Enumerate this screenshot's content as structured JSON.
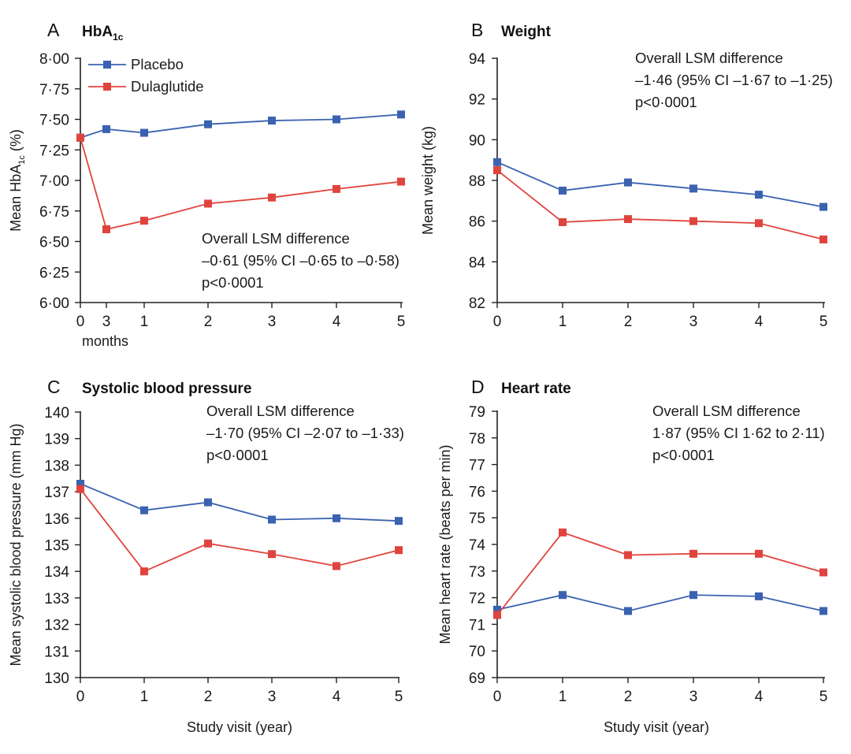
{
  "legend": [
    {
      "name": "Placebo",
      "color": "#3a62b0"
    },
    {
      "name": "Dulaglutide",
      "color": "#e0443e"
    }
  ],
  "xlabel_bottom": "Study visit (year)",
  "chart_data": [
    {
      "type": "line",
      "panel": "A",
      "title": "HbA",
      "title_sub": "1c",
      "ylabel": "Mean HbA",
      "ylabel_sub": "1c",
      "ylabel_suffix": " (%)",
      "x_tick_labels": [
        "0",
        "3",
        "1",
        "2",
        "3",
        "4",
        "5"
      ],
      "x_note": "months",
      "ylim": [
        6.0,
        8.0
      ],
      "y_ticks": [
        "6·00",
        "6·25",
        "6·50",
        "6·75",
        "7·00",
        "7·25",
        "7·50",
        "7·75",
        "8·00"
      ],
      "series": [
        {
          "name": "Placebo",
          "values": [
            7.35,
            7.42,
            7.39,
            7.46,
            7.49,
            7.5,
            7.54
          ]
        },
        {
          "name": "Dulaglutide",
          "values": [
            7.35,
            6.6,
            6.67,
            6.81,
            6.86,
            6.93,
            6.99
          ]
        }
      ],
      "annotation": [
        "Overall LSM difference",
        "–0·61 (95% CI –0·65 to –0·58)",
        "p<0·0001"
      ]
    },
    {
      "type": "line",
      "panel": "B",
      "title": "Weight",
      "ylabel": "Mean weight (kg)",
      "x_tick_labels": [
        "0",
        "1",
        "2",
        "3",
        "4",
        "5"
      ],
      "ylim": [
        82,
        94
      ],
      "y_ticks": [
        "82",
        "84",
        "86",
        "88",
        "90",
        "92",
        "94"
      ],
      "series": [
        {
          "name": "Placebo",
          "values": [
            88.9,
            87.5,
            87.9,
            87.6,
            87.3,
            86.7
          ]
        },
        {
          "name": "Dulaglutide",
          "values": [
            88.5,
            85.95,
            86.1,
            86.0,
            85.9,
            85.1
          ]
        }
      ],
      "annotation": [
        "Overall LSM difference",
        "–1·46 (95% CI –1·67 to –1·25)",
        "p<0·0001"
      ]
    },
    {
      "type": "line",
      "panel": "C",
      "title": "Systolic blood pressure",
      "ylabel": "Mean systolic blood pressure (mm Hg)",
      "xlabel": "Study visit (year)",
      "x_tick_labels": [
        "0",
        "1",
        "2",
        "3",
        "4",
        "5"
      ],
      "ylim": [
        130,
        140
      ],
      "y_ticks": [
        "130",
        "131",
        "132",
        "133",
        "134",
        "135",
        "136",
        "137",
        "138",
        "139",
        "140"
      ],
      "series": [
        {
          "name": "Placebo",
          "values": [
            137.3,
            136.3,
            136.6,
            135.95,
            136.0,
            135.9
          ]
        },
        {
          "name": "Dulaglutide",
          "values": [
            137.1,
            134.0,
            135.05,
            134.65,
            134.2,
            134.8
          ]
        }
      ],
      "annotation": [
        "Overall LSM difference",
        "–1·70 (95% CI –2·07 to –1·33)",
        "p<0·0001"
      ]
    },
    {
      "type": "line",
      "panel": "D",
      "title": "Heart rate",
      "ylabel": "Mean heart rate (beats per min)",
      "xlabel": "Study visit (year)",
      "x_tick_labels": [
        "0",
        "1",
        "2",
        "3",
        "4",
        "5"
      ],
      "ylim": [
        69,
        79
      ],
      "y_ticks": [
        "69",
        "70",
        "71",
        "72",
        "73",
        "74",
        "75",
        "76",
        "77",
        "78",
        "79"
      ],
      "series": [
        {
          "name": "Placebo",
          "values": [
            71.55,
            72.1,
            71.5,
            72.1,
            72.05,
            71.5
          ]
        },
        {
          "name": "Dulaglutide",
          "values": [
            71.35,
            74.45,
            73.6,
            73.65,
            73.65,
            72.95
          ]
        }
      ],
      "annotation": [
        "Overall LSM difference",
        "1·87 (95% CI 1·62 to 2·11)",
        "p<0·0001"
      ]
    }
  ]
}
